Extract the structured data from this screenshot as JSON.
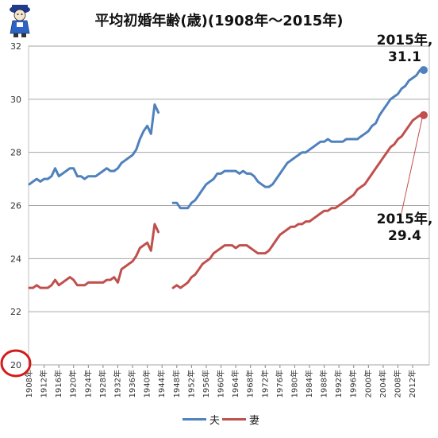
{
  "title": "平均初婚年齢(歳)(1908年～2015年)",
  "annotations": {
    "husband_line1": "2015年,",
    "husband_line2": "31.1",
    "wife_line1": "2015年,",
    "wife_line2": "29.4"
  },
  "legend": [
    {
      "name": "夫",
      "color": "#4f81bd"
    },
    {
      "name": "妻",
      "color": "#c0504d"
    }
  ],
  "chart_data": {
    "type": "line",
    "title": "平均初婚年齢(歳)(1908年～2015年)",
    "xlabel": "",
    "ylabel": "",
    "ylim": [
      20,
      32
    ],
    "yticks": [
      20,
      22,
      24,
      26,
      28,
      30,
      32
    ],
    "xlim": [
      1908,
      2015
    ],
    "xtick_labels": [
      "1908年",
      "1912年",
      "1916年",
      "1920年",
      "1924年",
      "1928年",
      "1932年",
      "1936年",
      "1940年",
      "1944年",
      "1948年",
      "1952年",
      "1956年",
      "1960年",
      "1964年",
      "1968年",
      "1972年",
      "1976年",
      "1980年",
      "1984年",
      "1988年",
      "1992年",
      "1996年",
      "2000年",
      "2004年",
      "2008年",
      "2012年"
    ],
    "grid": "horizontal",
    "legend_position": "bottom",
    "highlight": "y-axis origin 20 circled in red",
    "series": [
      {
        "name": "夫",
        "color": "#4f81bd",
        "segments": [
          [
            [
              1908,
              26.8
            ],
            [
              1909,
              26.9
            ],
            [
              1910,
              27.0
            ],
            [
              1911,
              26.9
            ],
            [
              1912,
              27.0
            ],
            [
              1913,
              27.0
            ],
            [
              1914,
              27.1
            ],
            [
              1915,
              27.4
            ],
            [
              1916,
              27.1
            ],
            [
              1917,
              27.2
            ],
            [
              1918,
              27.3
            ],
            [
              1919,
              27.4
            ],
            [
              1920,
              27.4
            ],
            [
              1921,
              27.1
            ],
            [
              1922,
              27.1
            ],
            [
              1923,
              27.0
            ],
            [
              1924,
              27.1
            ],
            [
              1925,
              27.1
            ],
            [
              1926,
              27.1
            ],
            [
              1927,
              27.2
            ],
            [
              1928,
              27.3
            ],
            [
              1929,
              27.4
            ],
            [
              1930,
              27.3
            ],
            [
              1931,
              27.3
            ],
            [
              1932,
              27.4
            ],
            [
              1933,
              27.6
            ],
            [
              1934,
              27.7
            ],
            [
              1935,
              27.8
            ],
            [
              1936,
              27.9
            ],
            [
              1937,
              28.1
            ],
            [
              1938,
              28.5
            ],
            [
              1939,
              28.8
            ],
            [
              1940,
              29.0
            ],
            [
              1941,
              28.7
            ],
            [
              1942,
              29.8
            ],
            [
              1943,
              29.5
            ]
          ],
          [
            [
              1947,
              26.1
            ],
            [
              1948,
              26.1
            ],
            [
              1949,
              25.9
            ],
            [
              1950,
              25.9
            ],
            [
              1951,
              25.9
            ],
            [
              1952,
              26.1
            ],
            [
              1953,
              26.2
            ],
            [
              1954,
              26.4
            ],
            [
              1955,
              26.6
            ],
            [
              1956,
              26.8
            ],
            [
              1957,
              26.9
            ],
            [
              1958,
              27.0
            ],
            [
              1959,
              27.2
            ],
            [
              1960,
              27.2
            ],
            [
              1961,
              27.3
            ],
            [
              1962,
              27.3
            ],
            [
              1963,
              27.3
            ],
            [
              1964,
              27.3
            ],
            [
              1965,
              27.2
            ],
            [
              1966,
              27.3
            ],
            [
              1967,
              27.2
            ],
            [
              1968,
              27.2
            ],
            [
              1969,
              27.1
            ],
            [
              1970,
              26.9
            ],
            [
              1971,
              26.8
            ],
            [
              1972,
              26.7
            ],
            [
              1973,
              26.7
            ],
            [
              1974,
              26.8
            ],
            [
              1975,
              27.0
            ],
            [
              1976,
              27.2
            ],
            [
              1977,
              27.4
            ],
            [
              1978,
              27.6
            ],
            [
              1979,
              27.7
            ],
            [
              1980,
              27.8
            ],
            [
              1981,
              27.9
            ],
            [
              1982,
              28.0
            ],
            [
              1983,
              28.0
            ],
            [
              1984,
              28.1
            ],
            [
              1985,
              28.2
            ],
            [
              1986,
              28.3
            ],
            [
              1987,
              28.4
            ],
            [
              1988,
              28.4
            ],
            [
              1989,
              28.5
            ],
            [
              1990,
              28.4
            ],
            [
              1991,
              28.4
            ],
            [
              1992,
              28.4
            ],
            [
              1993,
              28.4
            ],
            [
              1994,
              28.5
            ],
            [
              1995,
              28.5
            ],
            [
              1996,
              28.5
            ],
            [
              1997,
              28.5
            ],
            [
              1998,
              28.6
            ],
            [
              1999,
              28.7
            ],
            [
              2000,
              28.8
            ],
            [
              2001,
              29.0
            ],
            [
              2002,
              29.1
            ],
            [
              2003,
              29.4
            ],
            [
              2004,
              29.6
            ],
            [
              2005,
              29.8
            ],
            [
              2006,
              30.0
            ],
            [
              2007,
              30.1
            ],
            [
              2008,
              30.2
            ],
            [
              2009,
              30.4
            ],
            [
              2010,
              30.5
            ],
            [
              2011,
              30.7
            ],
            [
              2012,
              30.8
            ],
            [
              2013,
              30.9
            ],
            [
              2014,
              31.1
            ],
            [
              2015,
              31.1
            ]
          ]
        ]
      },
      {
        "name": "妻",
        "color": "#c0504d",
        "segments": [
          [
            [
              1908,
              22.9
            ],
            [
              1909,
              22.9
            ],
            [
              1910,
              23.0
            ],
            [
              1911,
              22.9
            ],
            [
              1912,
              22.9
            ],
            [
              1913,
              22.9
            ],
            [
              1914,
              23.0
            ],
            [
              1915,
              23.2
            ],
            [
              1916,
              23.0
            ],
            [
              1917,
              23.1
            ],
            [
              1918,
              23.2
            ],
            [
              1919,
              23.3
            ],
            [
              1920,
              23.2
            ],
            [
              1921,
              23.0
            ],
            [
              1922,
              23.0
            ],
            [
              1923,
              23.0
            ],
            [
              1924,
              23.1
            ],
            [
              1925,
              23.1
            ],
            [
              1926,
              23.1
            ],
            [
              1927,
              23.1
            ],
            [
              1928,
              23.1
            ],
            [
              1929,
              23.2
            ],
            [
              1930,
              23.2
            ],
            [
              1931,
              23.3
            ],
            [
              1932,
              23.1
            ],
            [
              1933,
              23.6
            ],
            [
              1934,
              23.7
            ],
            [
              1935,
              23.8
            ],
            [
              1936,
              23.9
            ],
            [
              1937,
              24.1
            ],
            [
              1938,
              24.4
            ],
            [
              1939,
              24.5
            ],
            [
              1940,
              24.6
            ],
            [
              1941,
              24.3
            ],
            [
              1942,
              25.3
            ],
            [
              1943,
              25.0
            ]
          ],
          [
            [
              1947,
              22.9
            ],
            [
              1948,
              23.0
            ],
            [
              1949,
              22.9
            ],
            [
              1950,
              23.0
            ],
            [
              1951,
              23.1
            ],
            [
              1952,
              23.3
            ],
            [
              1953,
              23.4
            ],
            [
              1954,
              23.6
            ],
            [
              1955,
              23.8
            ],
            [
              1956,
              23.9
            ],
            [
              1957,
              24.0
            ],
            [
              1958,
              24.2
            ],
            [
              1959,
              24.3
            ],
            [
              1960,
              24.4
            ],
            [
              1961,
              24.5
            ],
            [
              1962,
              24.5
            ],
            [
              1963,
              24.5
            ],
            [
              1964,
              24.4
            ],
            [
              1965,
              24.5
            ],
            [
              1966,
              24.5
            ],
            [
              1967,
              24.5
            ],
            [
              1968,
              24.4
            ],
            [
              1969,
              24.3
            ],
            [
              1970,
              24.2
            ],
            [
              1971,
              24.2
            ],
            [
              1972,
              24.2
            ],
            [
              1973,
              24.3
            ],
            [
              1974,
              24.5
            ],
            [
              1975,
              24.7
            ],
            [
              1976,
              24.9
            ],
            [
              1977,
              25.0
            ],
            [
              1978,
              25.1
            ],
            [
              1979,
              25.2
            ],
            [
              1980,
              25.2
            ],
            [
              1981,
              25.3
            ],
            [
              1982,
              25.3
            ],
            [
              1983,
              25.4
            ],
            [
              1984,
              25.4
            ],
            [
              1985,
              25.5
            ],
            [
              1986,
              25.6
            ],
            [
              1987,
              25.7
            ],
            [
              1988,
              25.8
            ],
            [
              1989,
              25.8
            ],
            [
              1990,
              25.9
            ],
            [
              1991,
              25.9
            ],
            [
              1992,
              26.0
            ],
            [
              1993,
              26.1
            ],
            [
              1994,
              26.2
            ],
            [
              1995,
              26.3
            ],
            [
              1996,
              26.4
            ],
            [
              1997,
              26.6
            ],
            [
              1998,
              26.7
            ],
            [
              1999,
              26.8
            ],
            [
              2000,
              27.0
            ],
            [
              2001,
              27.2
            ],
            [
              2002,
              27.4
            ],
            [
              2003,
              27.6
            ],
            [
              2004,
              27.8
            ],
            [
              2005,
              28.0
            ],
            [
              2006,
              28.2
            ],
            [
              2007,
              28.3
            ],
            [
              2008,
              28.5
            ],
            [
              2009,
              28.6
            ],
            [
              2010,
              28.8
            ],
            [
              2011,
              29.0
            ],
            [
              2012,
              29.2
            ],
            [
              2013,
              29.3
            ],
            [
              2014,
              29.4
            ],
            [
              2015,
              29.4
            ]
          ]
        ]
      }
    ]
  }
}
